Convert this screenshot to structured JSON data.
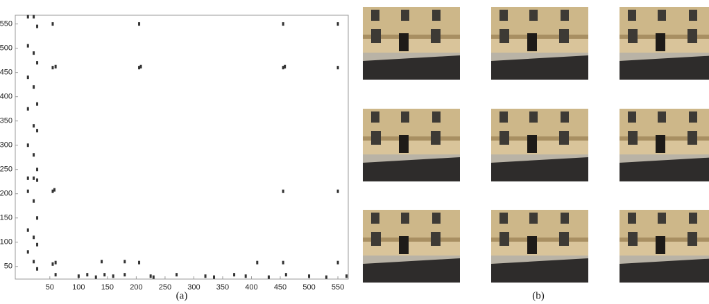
{
  "chart_data": {
    "type": "scatter",
    "x": [
      12,
      22,
      28,
      12,
      22,
      28,
      12,
      22,
      28,
      12,
      22,
      28,
      12,
      22,
      28,
      12,
      22,
      28,
      12,
      22,
      28,
      12,
      22,
      28,
      12,
      22,
      28,
      60,
      100,
      115,
      130,
      145,
      160,
      180,
      225,
      230,
      270,
      320,
      335,
      370,
      390,
      430,
      460,
      500,
      530,
      565,
      55,
      60,
      55,
      58,
      55,
      60,
      55,
      205,
      205,
      208,
      205,
      455,
      455,
      455,
      458,
      455,
      550,
      550,
      550,
      550,
      140,
      180,
      410
    ],
    "y": [
      565,
      565,
      545,
      505,
      490,
      470,
      440,
      420,
      385,
      375,
      340,
      330,
      300,
      280,
      250,
      232,
      232,
      228,
      205,
      185,
      150,
      125,
      110,
      95,
      80,
      60,
      45,
      33,
      30,
      33,
      28,
      33,
      30,
      33,
      30,
      28,
      33,
      30,
      28,
      33,
      30,
      28,
      33,
      30,
      28,
      30,
      55,
      58,
      205,
      208,
      460,
      462,
      550,
      58,
      460,
      462,
      550,
      58,
      205,
      460,
      462,
      550,
      58,
      205,
      460,
      550,
      60,
      60,
      58
    ],
    "color": "#333333",
    "xlim": [
      -10,
      568
    ],
    "ylim": [
      24,
      568
    ],
    "xticks": [
      50,
      100,
      150,
      200,
      250,
      300,
      350,
      400,
      450,
      500,
      550
    ],
    "yticks": [
      50,
      100,
      150,
      200,
      250,
      300,
      350,
      400,
      450,
      500,
      550
    ]
  },
  "captions": {
    "a": "(a)",
    "b": "(b)"
  }
}
